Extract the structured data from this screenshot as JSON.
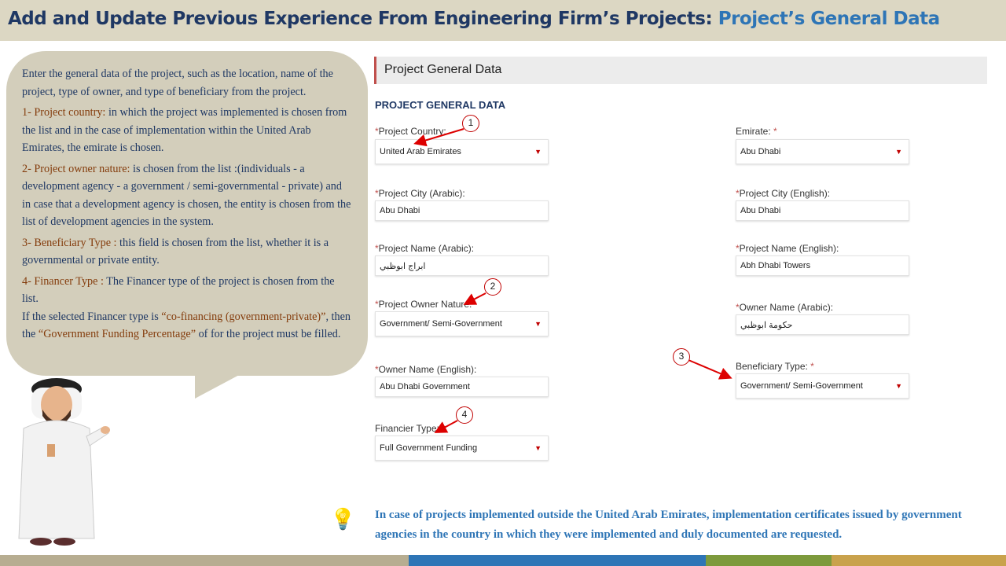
{
  "header": {
    "title": "Add and Update Previous Experience From Engineering Firm’s Projects: ",
    "highlight": "Project’s General Data"
  },
  "bubble": {
    "intro": "Enter the general data of the project, such as the location, name of the project, type of owner, and type of beneficiary from the project.",
    "items": [
      {
        "key": "1- Project country:",
        "text": " in which the project was implemented is chosen from the list and in the case of implementation within the United Arab Emirates, the emirate is chosen."
      },
      {
        "key": "2- Project owner nature:",
        "text": " is chosen from the list :(individuals - a development agency - a government / semi-governmental - private) and in case that a development agency is chosen, the entity is chosen from the list of development agencies in the system."
      },
      {
        "key": "3- Beneficiary Type :",
        "text": " this field is chosen from the list, whether it is a governmental or private entity."
      },
      {
        "key": "4- Financer Type :",
        "text": " The Financer type of the project is chosen from the list."
      }
    ],
    "extra_1": "If the selected Financer type is ",
    "extra_q1": "“co-financing (government-private)”",
    "extra_2": ", then the ",
    "extra_q2": "“Government Funding Percentage”",
    "extra_3": " of for the project  must be filled."
  },
  "panel": {
    "title": "Project General Data",
    "section": "PROJECT GENERAL DATA",
    "required": "*",
    "fields": {
      "country": {
        "label": "Project Country:",
        "value": "United Arab Emirates"
      },
      "emirate": {
        "label": "Emirate:",
        "value": "Abu Dhabi"
      },
      "city_ar": {
        "label": "Project City (Arabic):",
        "value": "Abu Dhabi"
      },
      "city_en": {
        "label": "Project City (English):",
        "value": "Abu Dhabi"
      },
      "name_ar": {
        "label": "Project Name (Arabic):",
        "value": "ابراج ابوظبي"
      },
      "name_en": {
        "label": "Project Name (English):",
        "value": "Abh Dhabi Towers"
      },
      "owner_nature": {
        "label": "Project Owner Nature:",
        "value": "Government/ Semi-Government"
      },
      "owner_ar": {
        "label": "Owner Name (Arabic):",
        "value": "حكومة ابوظبي"
      },
      "owner_en": {
        "label": "Owner Name (English):",
        "value": "Abu Dhabi Government"
      },
      "beneficiary": {
        "label": "Beneficiary Type:",
        "value": "Government/ Semi-Government"
      },
      "financier": {
        "label": "Financier Type:",
        "value": "Full Government Funding"
      }
    }
  },
  "annotations": [
    "1",
    "2",
    "3",
    "4"
  ],
  "note": "In case of projects implemented outside the United Arab Emirates, implementation certificates issued by government agencies in the country in which they were implemented and duly documented are requested.",
  "colors": {
    "navy": "#1f3864",
    "blue": "#2e75b6",
    "accent": "#c00000",
    "bubble": "#d3cebb"
  }
}
